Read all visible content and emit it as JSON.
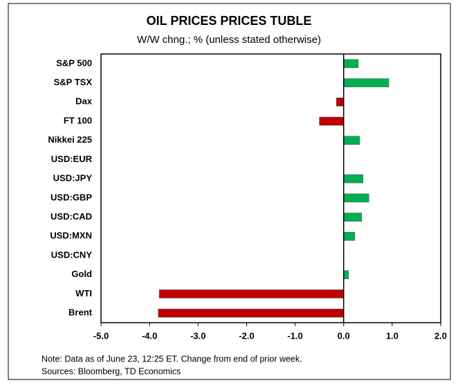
{
  "chart_data": {
    "type": "barh",
    "title": "OIL PRICES PRICES TUBLE",
    "subtitle": "W/W chng.; % (unless stated otherwise)",
    "categories": [
      "S&P 500",
      "S&P TSX",
      "Dax",
      "FT 100",
      "Nikkei 225",
      "USD:EUR",
      "USD:JPY",
      "USD:GBP",
      "USD:CAD",
      "USD:MXN",
      "USD:CNY",
      "Gold",
      "WTI",
      "Brent"
    ],
    "values": [
      0.3,
      0.93,
      -0.15,
      -0.5,
      0.33,
      0,
      0.4,
      0.52,
      0.37,
      0.23,
      0,
      0.1,
      -3.8,
      -3.82
    ],
    "positive_color": "#00b050",
    "negative_color": "#c00000",
    "xlim": [
      -5,
      2
    ],
    "xticks": [
      {
        "value": -5,
        "label": "-5.0"
      },
      {
        "value": -4,
        "label": "-4.0"
      },
      {
        "value": -3,
        "label": "-3.0"
      },
      {
        "value": -2,
        "label": "-2.0"
      },
      {
        "value": -1,
        "label": "-1.0"
      },
      {
        "value": 0,
        "label": "0.0"
      },
      {
        "value": 1,
        "label": "1.0"
      },
      {
        "value": 2,
        "label": "2.0"
      }
    ],
    "notes": [
      "Note: Data as of June 23, 12:25 ET. Change from end of prior week.",
      "Sources: Bloomberg, TD Economics"
    ]
  }
}
